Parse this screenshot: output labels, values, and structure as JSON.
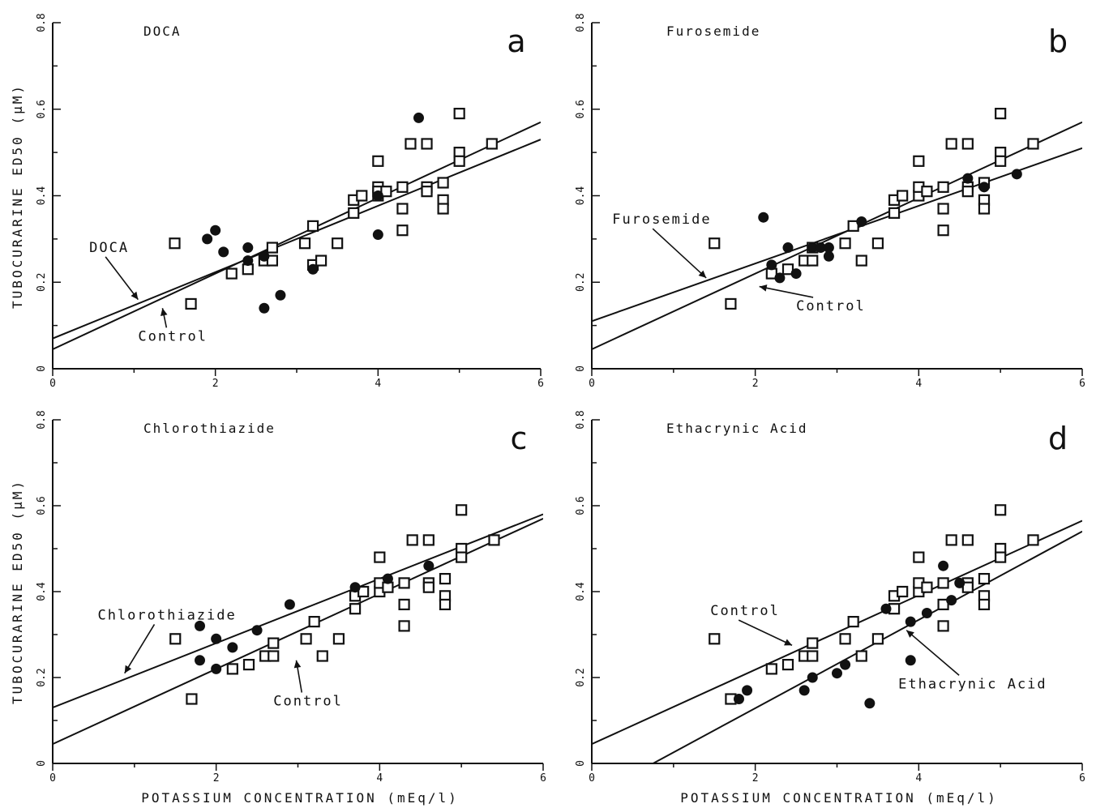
{
  "figure": {
    "ylabel": "TUBOCURARINE  ED50  (μM)",
    "xlabel": "POTASSIUM CONCENTRATION  (mEq/l)"
  },
  "chart_data": [
    {
      "type": "scatter",
      "panel_letter": "a",
      "title": "DOCA",
      "xlim": [
        0,
        6
      ],
      "ylim": [
        0,
        0.8
      ],
      "xticks": [
        "0",
        "2",
        "4",
        "6"
      ],
      "yticks": [
        "0",
        "0.2",
        "0.4",
        "0.6",
        "0.8"
      ],
      "control_points": {
        "x": [
          1.5,
          1.7,
          2.2,
          2.4,
          2.6,
          2.7,
          2.7,
          3.1,
          3.2,
          3.2,
          3.3,
          3.5,
          3.7,
          3.7,
          3.8,
          4.0,
          4.0,
          4.0,
          4.0,
          4.1,
          4.3,
          4.3,
          4.3,
          4.4,
          4.6,
          4.6,
          4.6,
          4.8,
          4.8,
          4.8,
          5.0,
          5.0,
          5.0,
          5.4
        ],
        "y": [
          0.29,
          0.15,
          0.22,
          0.23,
          0.25,
          0.25,
          0.28,
          0.29,
          0.24,
          0.33,
          0.25,
          0.29,
          0.36,
          0.39,
          0.4,
          0.4,
          0.42,
          0.41,
          0.48,
          0.41,
          0.42,
          0.37,
          0.32,
          0.52,
          0.52,
          0.42,
          0.41,
          0.43,
          0.39,
          0.37,
          0.5,
          0.48,
          0.59,
          0.52
        ]
      },
      "treated_points": {
        "x": [
          1.9,
          2.0,
          2.1,
          2.4,
          2.4,
          2.6,
          2.6,
          2.8,
          3.2,
          4.0,
          4.0,
          4.5
        ],
        "y": [
          0.3,
          0.32,
          0.27,
          0.28,
          0.25,
          0.26,
          0.14,
          0.17,
          0.23,
          0.4,
          0.31,
          0.58
        ]
      },
      "regression_lines": [
        {
          "label": "Control",
          "x": [
            0,
            6
          ],
          "y": [
            0.045,
            0.57
          ]
        },
        {
          "label": "DOCA",
          "x": [
            0,
            6
          ],
          "y": [
            0.07,
            0.53
          ]
        }
      ],
      "annotations": [
        {
          "text": "DOCA",
          "data_x": 0.45,
          "data_y": 0.27,
          "arrow_to_x": 1.05,
          "arrow_to_y": 0.16
        },
        {
          "text": "Control",
          "data_x": 1.05,
          "data_y": 0.065,
          "arrow_to_x": 1.35,
          "arrow_to_y": 0.14
        }
      ]
    },
    {
      "type": "scatter",
      "panel_letter": "b",
      "title": "Furosemide",
      "xlim": [
        0,
        6
      ],
      "ylim": [
        0,
        0.8
      ],
      "xticks": [
        "0",
        "2",
        "4",
        "6"
      ],
      "yticks": [
        "0",
        "0.2",
        "0.4",
        "0.6",
        "0.8"
      ],
      "control_points": {
        "x": [
          1.5,
          1.7,
          2.2,
          2.4,
          2.6,
          2.7,
          2.7,
          3.1,
          3.2,
          3.3,
          3.5,
          3.7,
          3.7,
          3.8,
          4.0,
          4.0,
          4.0,
          4.1,
          4.3,
          4.3,
          4.3,
          4.4,
          4.6,
          4.6,
          4.6,
          4.8,
          4.8,
          4.8,
          5.0,
          5.0,
          5.0,
          5.4
        ],
        "y": [
          0.29,
          0.15,
          0.22,
          0.23,
          0.25,
          0.25,
          0.28,
          0.29,
          0.33,
          0.25,
          0.29,
          0.36,
          0.39,
          0.4,
          0.4,
          0.42,
          0.48,
          0.41,
          0.42,
          0.37,
          0.32,
          0.52,
          0.52,
          0.42,
          0.41,
          0.43,
          0.39,
          0.37,
          0.5,
          0.48,
          0.59,
          0.52
        ]
      },
      "treated_points": {
        "x": [
          2.1,
          2.2,
          2.3,
          2.4,
          2.5,
          2.7,
          2.8,
          2.9,
          2.9,
          3.3,
          4.6,
          4.8,
          5.2
        ],
        "y": [
          0.35,
          0.24,
          0.21,
          0.28,
          0.22,
          0.28,
          0.28,
          0.26,
          0.28,
          0.34,
          0.44,
          0.42,
          0.45
        ]
      },
      "regression_lines": [
        {
          "label": "Control",
          "x": [
            0,
            6
          ],
          "y": [
            0.045,
            0.57
          ]
        },
        {
          "label": "Furosemide",
          "x": [
            0,
            6
          ],
          "y": [
            0.11,
            0.51
          ]
        }
      ],
      "annotations": [
        {
          "text": "Furosemide",
          "data_x": 0.25,
          "data_y": 0.335,
          "arrow_to_x": 1.4,
          "arrow_to_y": 0.21
        },
        {
          "text": "Control",
          "data_x": 2.5,
          "data_y": 0.135,
          "arrow_to_x": 2.05,
          "arrow_to_y": 0.19
        }
      ]
    },
    {
      "type": "scatter",
      "panel_letter": "c",
      "title": "Chlorothiazide",
      "xlim": [
        0,
        6
      ],
      "ylim": [
        0,
        0.8
      ],
      "xticks": [
        "0",
        "2",
        "4",
        "6"
      ],
      "yticks": [
        "0",
        "0.2",
        "0.4",
        "0.6",
        "0.8"
      ],
      "control_points": {
        "x": [
          1.5,
          1.7,
          2.2,
          2.4,
          2.6,
          2.7,
          2.7,
          3.1,
          3.2,
          3.3,
          3.5,
          3.7,
          3.7,
          3.8,
          4.0,
          4.0,
          4.0,
          4.1,
          4.3,
          4.3,
          4.3,
          4.4,
          4.6,
          4.6,
          4.6,
          4.8,
          4.8,
          4.8,
          5.0,
          5.0,
          5.0,
          5.4
        ],
        "y": [
          0.29,
          0.15,
          0.22,
          0.23,
          0.25,
          0.25,
          0.28,
          0.29,
          0.33,
          0.25,
          0.29,
          0.36,
          0.39,
          0.4,
          0.4,
          0.42,
          0.48,
          0.41,
          0.42,
          0.37,
          0.32,
          0.52,
          0.52,
          0.42,
          0.41,
          0.43,
          0.39,
          0.37,
          0.5,
          0.48,
          0.59,
          0.52
        ]
      },
      "treated_points": {
        "x": [
          1.8,
          1.8,
          2.0,
          2.0,
          2.2,
          2.5,
          2.9,
          3.7,
          4.1,
          4.6
        ],
        "y": [
          0.32,
          0.24,
          0.29,
          0.22,
          0.27,
          0.31,
          0.37,
          0.41,
          0.43,
          0.46
        ]
      },
      "regression_lines": [
        {
          "label": "Control",
          "x": [
            0,
            6
          ],
          "y": [
            0.045,
            0.57
          ]
        },
        {
          "label": "Chlorothiazide",
          "x": [
            0,
            6
          ],
          "y": [
            0.13,
            0.58
          ]
        }
      ],
      "annotations": [
        {
          "text": "Chlorothiazide",
          "data_x": 0.55,
          "data_y": 0.335,
          "arrow_to_x": 0.88,
          "arrow_to_y": 0.21
        },
        {
          "text": "Control",
          "data_x": 2.7,
          "data_y": 0.135,
          "arrow_to_x": 2.98,
          "arrow_to_y": 0.24
        }
      ]
    },
    {
      "type": "scatter",
      "panel_letter": "d",
      "title": "Ethacrynic Acid",
      "xlim": [
        0,
        6
      ],
      "ylim": [
        0,
        0.8
      ],
      "xticks": [
        "0",
        "2",
        "4",
        "6"
      ],
      "yticks": [
        "0",
        "0.2",
        "0.4",
        "0.6",
        "0.8"
      ],
      "control_points": {
        "x": [
          1.5,
          1.7,
          2.2,
          2.4,
          2.6,
          2.7,
          2.7,
          3.1,
          3.2,
          3.3,
          3.5,
          3.7,
          3.7,
          3.8,
          4.0,
          4.0,
          4.0,
          4.1,
          4.3,
          4.3,
          4.3,
          4.4,
          4.6,
          4.6,
          4.6,
          4.8,
          4.8,
          4.8,
          5.0,
          5.0,
          5.0,
          5.4
        ],
        "y": [
          0.29,
          0.15,
          0.22,
          0.23,
          0.25,
          0.25,
          0.28,
          0.29,
          0.33,
          0.25,
          0.29,
          0.36,
          0.39,
          0.4,
          0.4,
          0.42,
          0.48,
          0.41,
          0.42,
          0.37,
          0.32,
          0.52,
          0.52,
          0.42,
          0.41,
          0.43,
          0.39,
          0.37,
          0.5,
          0.48,
          0.59,
          0.52
        ]
      },
      "treated_points": {
        "x": [
          1.8,
          1.9,
          2.6,
          2.7,
          3.0,
          3.1,
          3.4,
          3.6,
          3.9,
          3.9,
          4.1,
          4.3,
          4.4,
          4.5
        ],
        "y": [
          0.15,
          0.17,
          0.17,
          0.2,
          0.21,
          0.23,
          0.14,
          0.36,
          0.33,
          0.24,
          0.35,
          0.46,
          0.38,
          0.42
        ]
      },
      "regression_lines": [
        {
          "label": "Control",
          "x": [
            0,
            6
          ],
          "y": [
            0.045,
            0.565
          ]
        },
        {
          "label": "Ethacrynic Acid",
          "x": [
            0.75,
            6
          ],
          "y": [
            0.0,
            0.54
          ]
        }
      ],
      "annotations": [
        {
          "text": "Control",
          "data_x": 1.45,
          "data_y": 0.345,
          "arrow_to_x": 2.45,
          "arrow_to_y": 0.275
        },
        {
          "text": "Ethacrynic Acid",
          "data_x": 3.75,
          "data_y": 0.175,
          "arrow_to_x": 3.85,
          "arrow_to_y": 0.31
        }
      ]
    }
  ]
}
